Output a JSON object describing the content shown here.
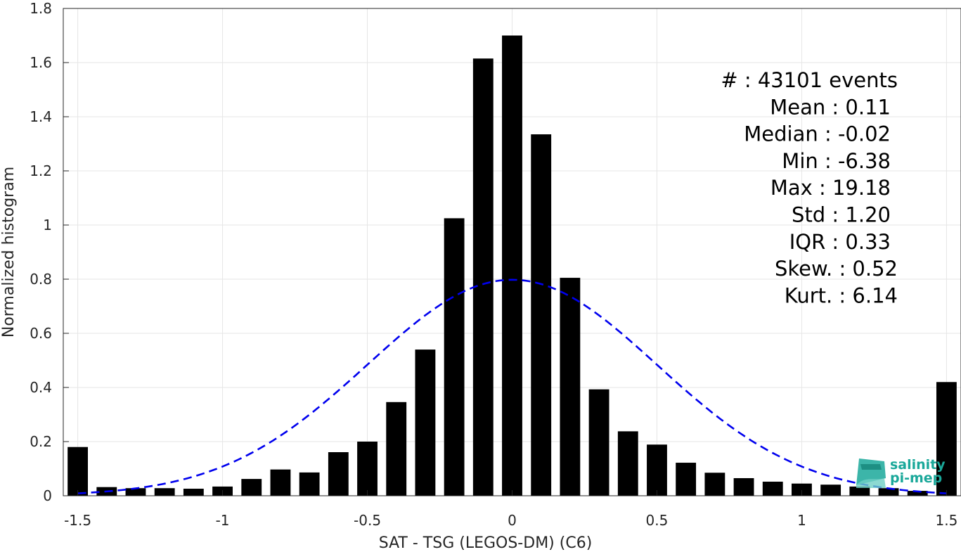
{
  "chart_data": {
    "type": "bar",
    "xlabel": "SAT - TSG (LEGOS-DM) (C6)",
    "ylabel": "Normalized histogram",
    "xlim": [
      -1.55,
      1.55
    ],
    "ylim": [
      0,
      1.8
    ],
    "xticks": [
      -1.5,
      -1,
      -0.5,
      0,
      0.5,
      1,
      1.5
    ],
    "xtick_labels": [
      "-1.5",
      "-1",
      "-0.5",
      "0",
      "0.5",
      "1",
      "1.5"
    ],
    "yticks": [
      0,
      0.2,
      0.4,
      0.6,
      0.8,
      1,
      1.2,
      1.4,
      1.6,
      1.8
    ],
    "ytick_labels": [
      "0",
      "0.2",
      "0.4",
      "0.6",
      "0.8",
      "1",
      "1.2",
      "1.4",
      "1.6",
      "1.8"
    ],
    "grid": true,
    "bar_color": "#000000",
    "bin_centers": [
      -1.5,
      -1.4,
      -1.3,
      -1.2,
      -1.1,
      -1.0,
      -0.9,
      -0.8,
      -0.7,
      -0.6,
      -0.5,
      -0.4,
      -0.3,
      -0.2,
      -0.1,
      0.0,
      0.1,
      0.2,
      0.3,
      0.4,
      0.5,
      0.6,
      0.7,
      0.8,
      0.9,
      1.0,
      1.1,
      1.2,
      1.3,
      1.4,
      1.5
    ],
    "values": [
      0.18,
      0.032,
      0.028,
      0.028,
      0.026,
      0.034,
      0.062,
      0.097,
      0.086,
      0.161,
      0.2,
      0.346,
      0.54,
      1.025,
      1.615,
      1.7,
      1.335,
      0.805,
      0.393,
      0.238,
      0.189,
      0.122,
      0.085,
      0.065,
      0.052,
      0.045,
      0.041,
      0.034,
      0.028,
      0.018,
      0.42
    ],
    "gaussian_fit": {
      "mean": 0,
      "std": 0.5,
      "color": "#0000ee",
      "dashed": true,
      "x_range": [
        -1.5,
        1.5
      ]
    },
    "stats": [
      "#  : 43101 events",
      "Mean : 0.11",
      "Median : -0.02",
      "Min : -6.38",
      "Max : 19.18",
      "Std : 1.20",
      "IQR : 0.33",
      "Skew. : 0.52",
      "Kurt. : 6.14"
    ]
  },
  "logo": {
    "line1": "salinity",
    "line2": "pi-mep",
    "color": "#1aa89a"
  }
}
